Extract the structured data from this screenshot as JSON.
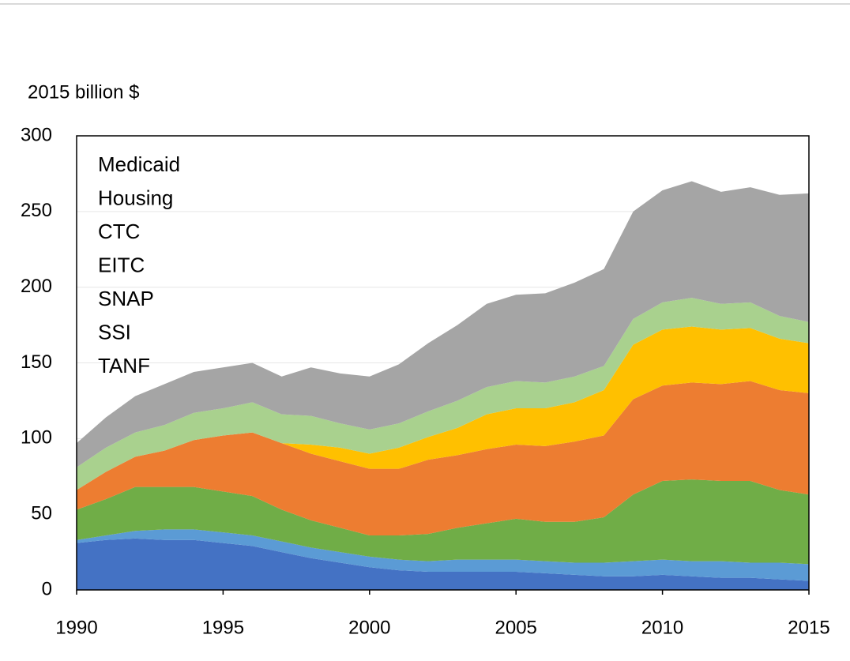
{
  "chart_data": {
    "type": "stacked_area",
    "y_axis_label": "2015 billion $",
    "x": [
      1990,
      1991,
      1992,
      1993,
      1994,
      1995,
      1996,
      1997,
      1998,
      1999,
      2000,
      2001,
      2002,
      2003,
      2004,
      2005,
      2006,
      2007,
      2008,
      2009,
      2010,
      2011,
      2012,
      2013,
      2014,
      2015
    ],
    "xlim": [
      1990,
      2015
    ],
    "xticks": [
      1990,
      1995,
      2000,
      2005,
      2010,
      2015
    ],
    "ylim": [
      0,
      300
    ],
    "yticks": [
      0,
      50,
      100,
      150,
      200,
      250,
      300
    ],
    "grid": true,
    "legend": "upper left",
    "series": [
      {
        "name": "TANF",
        "color": "#4472c4",
        "values": [
          31,
          33,
          34,
          33,
          33,
          31,
          29,
          25,
          21,
          18,
          15,
          13,
          12,
          12,
          12,
          12,
          11,
          10,
          9,
          9,
          10,
          9,
          8,
          8,
          7,
          6
        ]
      },
      {
        "name": "SSI",
        "color": "#5b9bd5",
        "values": [
          2,
          3,
          5,
          7,
          7,
          7,
          7,
          7,
          7,
          7,
          7,
          7,
          7,
          8,
          8,
          8,
          8,
          8,
          9,
          10,
          10,
          10,
          11,
          10,
          11,
          11
        ]
      },
      {
        "name": "SNAP",
        "color": "#70ad47",
        "values": [
          20,
          24,
          29,
          28,
          28,
          27,
          26,
          21,
          18,
          16,
          14,
          16,
          18,
          21,
          24,
          27,
          26,
          27,
          30,
          44,
          52,
          54,
          53,
          54,
          48,
          46
        ]
      },
      {
        "name": "EITC",
        "color": "#ed7d31",
        "values": [
          13,
          18,
          20,
          24,
          31,
          37,
          42,
          44,
          44,
          44,
          44,
          44,
          49,
          48,
          49,
          49,
          50,
          53,
          54,
          63,
          63,
          64,
          64,
          66,
          66,
          67
        ]
      },
      {
        "name": "CTC",
        "color": "#ffc000",
        "values": [
          0,
          0,
          0,
          0,
          0,
          0,
          0,
          0,
          6,
          9,
          10,
          14,
          15,
          18,
          23,
          24,
          25,
          26,
          30,
          36,
          37,
          37,
          36,
          35,
          34,
          33
        ]
      },
      {
        "name": "Housing",
        "color": "#a9d18e",
        "values": [
          15,
          16,
          16,
          17,
          18,
          18,
          20,
          19,
          19,
          16,
          16,
          16,
          17,
          18,
          18,
          18,
          17,
          17,
          16,
          17,
          18,
          19,
          17,
          17,
          15,
          14
        ]
      },
      {
        "name": "Medicaid",
        "color": "#a5a5a5",
        "values": [
          16,
          20,
          24,
          27,
          27,
          27,
          26,
          25,
          32,
          33,
          35,
          39,
          45,
          50,
          55,
          57,
          59,
          62,
          64,
          71,
          74,
          77,
          74,
          76,
          80,
          85
        ]
      }
    ]
  }
}
